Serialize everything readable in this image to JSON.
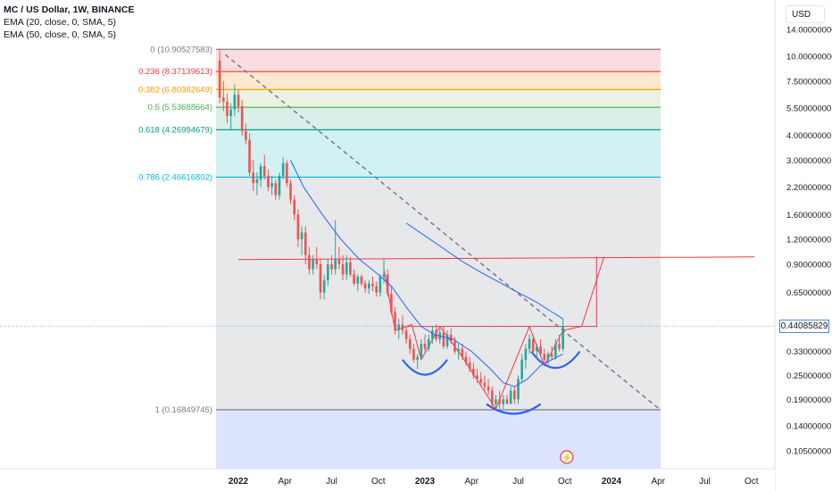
{
  "legend": {
    "title": "MC / US Dollar, 1W, BINANCE",
    "ema20": "EMA (20, close, 0, SMA, 5)",
    "ema50": "EMA (50, close, 0, SMA, 5)"
  },
  "currency": "USD",
  "current_price": "0.44085829",
  "colors": {
    "up": "#26a69a",
    "down": "#ef5350",
    "ema": "#2962ff",
    "pattern": "#f23645",
    "cup": "#2962ff"
  },
  "chart_data": {
    "type": "candlestick",
    "y_scale": "log",
    "y_ticks": [
      "14.00000000",
      "10.00000000",
      "7.50000000",
      "5.50000000",
      "4.00000000",
      "3.00000000",
      "2.20000000",
      "1.60000000",
      "1.20000000",
      "0.90000000",
      "0.65000000",
      "0.44085829",
      "0.33000000",
      "0.25000000",
      "0.19000000",
      "0.14000000",
      "0.10500000"
    ],
    "x_ticks": [
      "2022",
      "Apr",
      "Jul",
      "Oct",
      "2023",
      "Apr",
      "Jul",
      "Oct",
      "2024",
      "Apr",
      "Jul",
      "Oct"
    ],
    "fib_levels": [
      {
        "label": "0 (10.90527583)",
        "value": 10.90527583,
        "color": "#787b86",
        "fill": "#fbd7d9"
      },
      {
        "label": "0.236 (8.37139613)",
        "value": 8.37139613,
        "color": "#f23645",
        "fill": "#fde5c7"
      },
      {
        "label": "0.382 (6.80382649)",
        "value": 6.80382649,
        "color": "#ff9800",
        "fill": "#e6f0dc"
      },
      {
        "label": "0.5 (5.53688664)",
        "value": 5.53688664,
        "color": "#4caf50",
        "fill": "#d3ece5"
      },
      {
        "label": "0.618 (4.26994679)",
        "value": 4.26994679,
        "color": "#089981",
        "fill": "#c9eef0"
      },
      {
        "label": "0.786 (2.46616802)",
        "value": 2.46616802,
        "color": "#00bcd4",
        "fill": "#e3e4e6"
      },
      {
        "label": "1 (0.16849745)",
        "value": 0.16849745,
        "color": "#787b86",
        "fill": "#d6defc"
      }
    ],
    "candles": [
      [
        2021.9,
        9.5,
        10.9,
        5.8,
        6.2
      ],
      [
        2021.92,
        6.2,
        7.5,
        5.3,
        5.9
      ],
      [
        2021.94,
        5.9,
        6.5,
        4.6,
        5.0
      ],
      [
        2021.96,
        5.0,
        5.8,
        4.3,
        5.4
      ],
      [
        2021.98,
        5.4,
        7.2,
        5.0,
        6.4
      ],
      [
        2022.0,
        6.4,
        6.8,
        5.2,
        5.6
      ],
      [
        2022.02,
        5.6,
        6.0,
        4.0,
        4.2
      ],
      [
        2022.04,
        4.2,
        4.6,
        3.6,
        3.8
      ],
      [
        2022.06,
        3.8,
        4.1,
        2.5,
        2.6
      ],
      [
        2022.08,
        2.6,
        3.0,
        2.1,
        2.3
      ],
      [
        2022.1,
        2.3,
        2.6,
        2.0,
        2.4
      ],
      [
        2022.12,
        2.4,
        2.9,
        2.2,
        2.8
      ],
      [
        2022.14,
        2.8,
        3.2,
        2.4,
        2.5
      ],
      [
        2022.16,
        2.5,
        2.7,
        2.1,
        2.2
      ],
      [
        2022.18,
        2.2,
        2.5,
        2.0,
        2.3
      ],
      [
        2022.2,
        2.3,
        2.4,
        1.9,
        2.0
      ],
      [
        2022.22,
        2.0,
        2.6,
        1.9,
        2.5
      ],
      [
        2022.24,
        2.5,
        3.1,
        2.4,
        2.9
      ],
      [
        2022.26,
        2.9,
        3.0,
        2.2,
        2.3
      ],
      [
        2022.28,
        2.3,
        2.4,
        1.8,
        1.9
      ],
      [
        2022.3,
        1.9,
        2.0,
        1.5,
        1.6
      ],
      [
        2022.32,
        1.6,
        1.7,
        1.1,
        1.2
      ],
      [
        2022.34,
        1.2,
        1.4,
        1.0,
        1.3
      ],
      [
        2022.36,
        1.3,
        1.4,
        0.9,
        1.0
      ],
      [
        2022.38,
        1.0,
        1.1,
        0.8,
        0.85
      ],
      [
        2022.4,
        0.85,
        1.0,
        0.8,
        0.95
      ],
      [
        2022.42,
        0.95,
        1.1,
        0.85,
        0.9
      ],
      [
        2022.44,
        0.9,
        0.95,
        0.6,
        0.65
      ],
      [
        2022.46,
        0.65,
        0.8,
        0.6,
        0.75
      ],
      [
        2022.48,
        0.75,
        0.95,
        0.7,
        0.9
      ],
      [
        2022.5,
        0.9,
        1.0,
        0.8,
        0.85
      ],
      [
        2022.52,
        0.85,
        1.5,
        0.8,
        0.95
      ],
      [
        2022.54,
        0.95,
        1.1,
        0.85,
        0.9
      ],
      [
        2022.56,
        0.9,
        1.0,
        0.75,
        0.8
      ],
      [
        2022.58,
        0.8,
        1.0,
        0.75,
        0.92
      ],
      [
        2022.6,
        0.92,
        0.98,
        0.78,
        0.8
      ],
      [
        2022.62,
        0.8,
        0.85,
        0.7,
        0.72
      ],
      [
        2022.64,
        0.72,
        0.8,
        0.66,
        0.78
      ],
      [
        2022.66,
        0.78,
        0.8,
        0.7,
        0.72
      ],
      [
        2022.68,
        0.72,
        0.75,
        0.65,
        0.68
      ],
      [
        2022.7,
        0.68,
        0.75,
        0.64,
        0.72
      ],
      [
        2022.72,
        0.72,
        0.78,
        0.66,
        0.7
      ],
      [
        2022.74,
        0.7,
        0.74,
        0.62,
        0.65
      ],
      [
        2022.76,
        0.65,
        0.8,
        0.62,
        0.78
      ],
      [
        2022.78,
        0.78,
        0.95,
        0.72,
        0.8
      ],
      [
        2022.8,
        0.8,
        0.85,
        0.62,
        0.64
      ],
      [
        2022.82,
        0.64,
        0.7,
        0.5,
        0.52
      ],
      [
        2022.84,
        0.52,
        0.55,
        0.4,
        0.42
      ],
      [
        2022.86,
        0.42,
        0.48,
        0.38,
        0.45
      ],
      [
        2022.88,
        0.45,
        0.5,
        0.4,
        0.42
      ],
      [
        2022.9,
        0.42,
        0.44,
        0.36,
        0.38
      ],
      [
        2022.92,
        0.38,
        0.4,
        0.32,
        0.34
      ],
      [
        2022.94,
        0.34,
        0.36,
        0.29,
        0.3
      ],
      [
        2022.96,
        0.3,
        0.32,
        0.27,
        0.31
      ],
      [
        2022.98,
        0.31,
        0.38,
        0.3,
        0.36
      ],
      [
        2023.0,
        0.36,
        0.4,
        0.33,
        0.34
      ],
      [
        2023.02,
        0.34,
        0.4,
        0.33,
        0.38
      ],
      [
        2023.04,
        0.38,
        0.44,
        0.36,
        0.42
      ],
      [
        2023.06,
        0.42,
        0.45,
        0.37,
        0.38
      ],
      [
        2023.08,
        0.38,
        0.43,
        0.36,
        0.41
      ],
      [
        2023.1,
        0.41,
        0.44,
        0.34,
        0.35
      ],
      [
        2023.12,
        0.35,
        0.42,
        0.34,
        0.4
      ],
      [
        2023.14,
        0.4,
        0.43,
        0.36,
        0.37
      ],
      [
        2023.16,
        0.37,
        0.39,
        0.32,
        0.33
      ],
      [
        2023.18,
        0.33,
        0.36,
        0.3,
        0.34
      ],
      [
        2023.2,
        0.34,
        0.36,
        0.3,
        0.31
      ],
      [
        2023.22,
        0.31,
        0.33,
        0.28,
        0.29
      ],
      [
        2023.24,
        0.29,
        0.31,
        0.26,
        0.27
      ],
      [
        2023.26,
        0.27,
        0.29,
        0.24,
        0.25
      ],
      [
        2023.28,
        0.25,
        0.27,
        0.23,
        0.24
      ],
      [
        2023.3,
        0.24,
        0.26,
        0.22,
        0.23
      ],
      [
        2023.32,
        0.23,
        0.25,
        0.21,
        0.22
      ],
      [
        2023.34,
        0.22,
        0.24,
        0.2,
        0.21
      ],
      [
        2023.36,
        0.21,
        0.22,
        0.17,
        0.18
      ],
      [
        2023.38,
        0.18,
        0.2,
        0.17,
        0.19
      ],
      [
        2023.4,
        0.19,
        0.21,
        0.17,
        0.18
      ],
      [
        2023.42,
        0.18,
        0.2,
        0.17,
        0.19
      ],
      [
        2023.44,
        0.19,
        0.2,
        0.18,
        0.18
      ],
      [
        2023.46,
        0.18,
        0.22,
        0.18,
        0.21
      ],
      [
        2023.48,
        0.21,
        0.22,
        0.18,
        0.19
      ],
      [
        2023.5,
        0.19,
        0.25,
        0.18,
        0.24
      ],
      [
        2023.52,
        0.24,
        0.32,
        0.23,
        0.3
      ],
      [
        2023.54,
        0.3,
        0.36,
        0.27,
        0.34
      ],
      [
        2023.56,
        0.34,
        0.4,
        0.32,
        0.38
      ],
      [
        2023.58,
        0.38,
        0.4,
        0.32,
        0.33
      ],
      [
        2023.6,
        0.33,
        0.36,
        0.3,
        0.35
      ],
      [
        2023.62,
        0.35,
        0.38,
        0.31,
        0.32
      ],
      [
        2023.64,
        0.32,
        0.34,
        0.28,
        0.3
      ],
      [
        2023.66,
        0.3,
        0.33,
        0.28,
        0.32
      ],
      [
        2023.68,
        0.32,
        0.35,
        0.3,
        0.31
      ],
      [
        2023.7,
        0.31,
        0.38,
        0.3,
        0.36
      ],
      [
        2023.72,
        0.36,
        0.4,
        0.33,
        0.34
      ],
      [
        2023.74,
        0.34,
        0.48,
        0.33,
        0.44
      ]
    ],
    "ema20": [
      [
        2022.28,
        3.0
      ],
      [
        2022.35,
        2.2
      ],
      [
        2022.45,
        1.6
      ],
      [
        2022.55,
        1.2
      ],
      [
        2022.65,
        0.95
      ],
      [
        2022.75,
        0.8
      ],
      [
        2022.82,
        0.7
      ],
      [
        2022.9,
        0.55
      ],
      [
        2022.98,
        0.44
      ],
      [
        2023.05,
        0.4
      ],
      [
        2023.15,
        0.38
      ],
      [
        2023.25,
        0.33
      ],
      [
        2023.35,
        0.27
      ],
      [
        2023.42,
        0.23
      ],
      [
        2023.48,
        0.22
      ],
      [
        2023.55,
        0.24
      ],
      [
        2023.62,
        0.28
      ],
      [
        2023.68,
        0.3
      ],
      [
        2023.74,
        0.32
      ]
    ],
    "ema50": [
      [
        2022.9,
        1.45
      ],
      [
        2023.0,
        1.25
      ],
      [
        2023.1,
        1.08
      ],
      [
        2023.2,
        0.93
      ],
      [
        2023.3,
        0.82
      ],
      [
        2023.4,
        0.73
      ],
      [
        2023.5,
        0.65
      ],
      [
        2023.6,
        0.58
      ],
      [
        2023.68,
        0.52
      ],
      [
        2023.74,
        0.48
      ]
    ]
  }
}
